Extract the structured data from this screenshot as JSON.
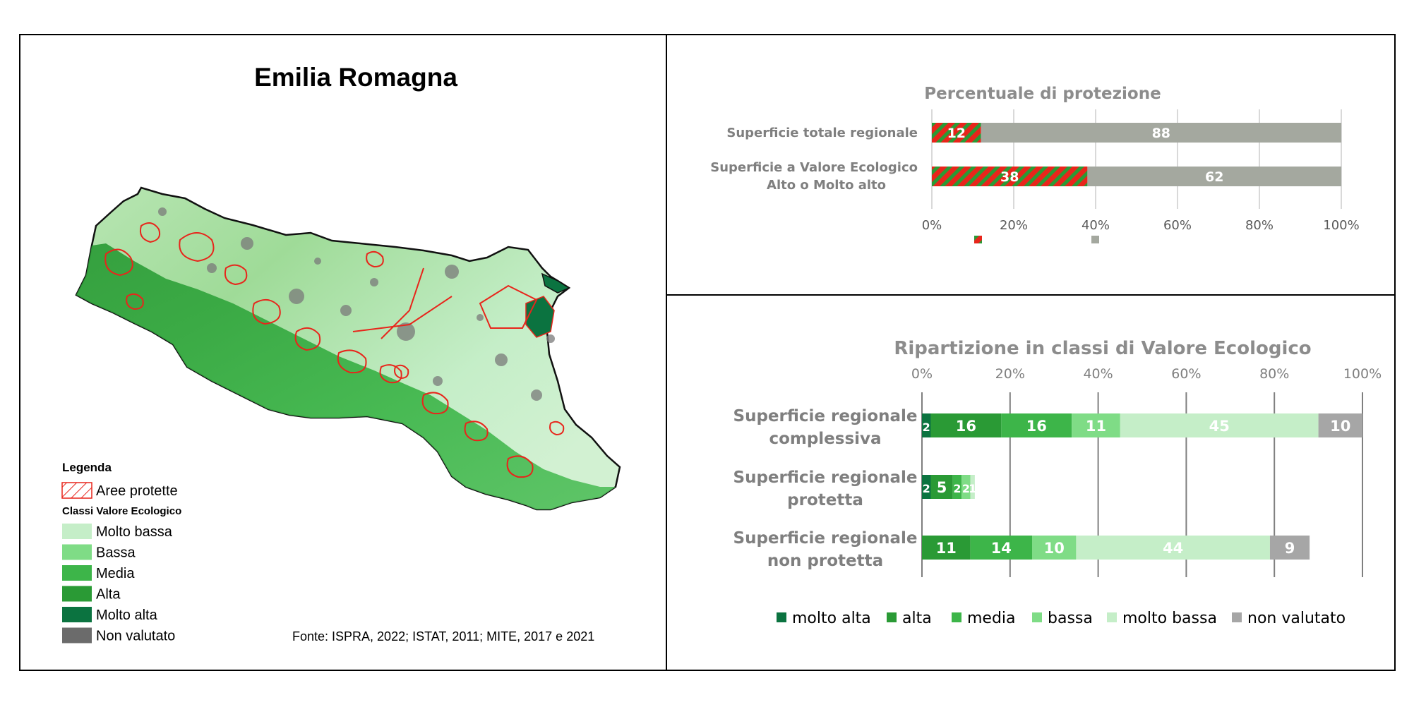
{
  "map": {
    "title": "Emilia Romagna",
    "legend_title": "Legenda",
    "protected_label": "Aree protette",
    "classes_title": "Classi Valore Ecologico",
    "classes": [
      {
        "label": "Molto bassa",
        "color": "#c5eec8"
      },
      {
        "label": "Bassa",
        "color": "#7fdc86"
      },
      {
        "label": "Media",
        "color": "#3db549"
      },
      {
        "label": "Alta",
        "color": "#2a9a35"
      },
      {
        "label": "Molto alta",
        "color": "#0b7340"
      },
      {
        "label": "Non valutato",
        "color": "#6b6b6b"
      }
    ],
    "source": "Fonte: ISPRA, 2022; ISTAT, 2011; MITE, 2017 e 2021",
    "protected_color": "#e8251b"
  },
  "chart_data": [
    {
      "type": "bar",
      "orientation": "horizontal",
      "stacked": true,
      "title": "Percentuale di protezione",
      "categories": [
        "Superficie totale regionale",
        "Superficie a Valore Ecologico Alto o Molto alto"
      ],
      "series": [
        {
          "values": [
            12,
            38
          ],
          "color": "#e8251b",
          "pattern": "hatch-green"
        },
        {
          "values": [
            88,
            62
          ],
          "color": "#a4a89f"
        }
      ],
      "xticks": [
        "0%",
        "20%",
        "40%",
        "60%",
        "80%",
        "100%"
      ],
      "xlim": [
        0,
        100
      ],
      "grid": true,
      "legend": "bottom"
    },
    {
      "type": "bar",
      "orientation": "horizontal",
      "stacked": true,
      "title": "Ripartizione in classi di Valore Ecologico",
      "categories": [
        "Superficie regionale complessiva",
        "Superficie regionale protetta",
        "Superficie regionale non protetta"
      ],
      "series": [
        {
          "name": "molto alta",
          "color": "#0b7340",
          "values": [
            2,
            2,
            0
          ]
        },
        {
          "name": "alta",
          "color": "#2a9a35",
          "values": [
            16,
            5,
            11
          ]
        },
        {
          "name": "media",
          "color": "#3db549",
          "values": [
            16,
            2,
            14
          ]
        },
        {
          "name": "bassa",
          "color": "#7fdc86",
          "values": [
            11,
            2,
            10
          ]
        },
        {
          "name": "molto bassa",
          "color": "#c5eec8",
          "values": [
            45,
            1,
            44
          ]
        },
        {
          "name": "non valutato",
          "color": "#a6a6a6",
          "values": [
            10,
            0,
            9
          ]
        }
      ],
      "xticks": [
        "0%",
        "20%",
        "40%",
        "60%",
        "80%",
        "100%"
      ],
      "xlim": [
        0,
        100
      ],
      "grid": true,
      "legend": "bottom"
    }
  ]
}
